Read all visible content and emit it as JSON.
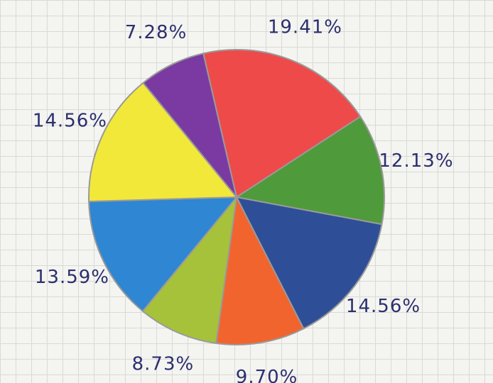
{
  "chart_data": {
    "type": "pie",
    "values": [
      19.41,
      12.13,
      14.56,
      9.7,
      8.73,
      13.59,
      14.56,
      7.28
    ],
    "value_labels": [
      "19.41%",
      "12.13%",
      "14.56%",
      "9.70%",
      "8.73%",
      "13.59%",
      "14.56%",
      "7.28%"
    ],
    "colors": [
      "#ee4a4a",
      "#4f9a3a",
      "#2e4f98",
      "#f2642e",
      "#a6c23a",
      "#2f86d2",
      "#f2e83a",
      "#7a3aa2"
    ]
  }
}
